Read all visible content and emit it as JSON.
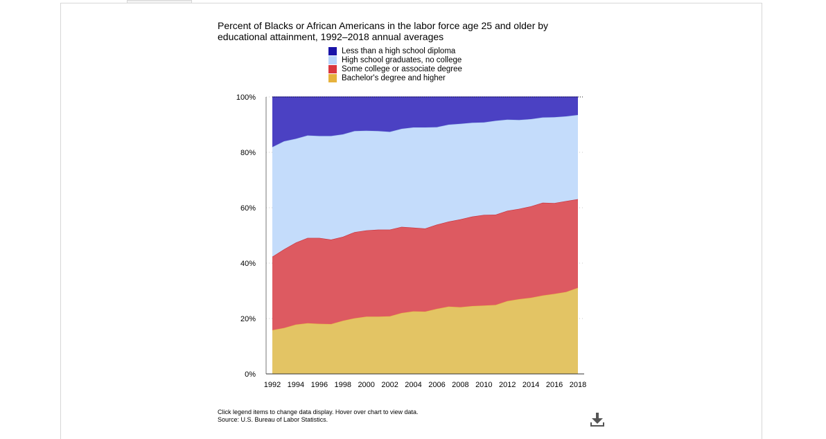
{
  "title": "Percent of Blacks or African Americans in the labor force age 25 and older by educational attainment, 1992–2018 annual averages",
  "footnote": {
    "instructions": "Click legend items to change data display. Hover over chart to view data.",
    "source": "Source: U.S. Bureau of Labor Statistics."
  },
  "download_icon": "download-icon",
  "chart_data": {
    "type": "area",
    "stacked": true,
    "x": [
      1992,
      1993,
      1994,
      1995,
      1996,
      1997,
      1998,
      1999,
      2000,
      2001,
      2002,
      2003,
      2004,
      2005,
      2006,
      2007,
      2008,
      2009,
      2010,
      2011,
      2012,
      2013,
      2014,
      2015,
      2016,
      2017,
      2018
    ],
    "x_tick_labels": [
      "1992",
      "1994",
      "1996",
      "1998",
      "2000",
      "2002",
      "2004",
      "2006",
      "2008",
      "2010",
      "2012",
      "2014",
      "2016",
      "2018"
    ],
    "y_tick_labels": [
      "0%",
      "20%",
      "40%",
      "60%",
      "80%",
      "100%"
    ],
    "ylim": [
      0,
      100
    ],
    "legend_position": "top",
    "series": [
      {
        "name": "Bachelor's degree and higher",
        "color": "#e3c464",
        "line": "#e8b84a",
        "values": [
          15.8,
          16.6,
          17.8,
          18.3,
          18.1,
          18.0,
          19.2,
          20.1,
          20.7,
          20.7,
          20.8,
          22.0,
          22.6,
          22.5,
          23.5,
          24.3,
          24.1,
          24.5,
          24.7,
          24.9,
          26.3,
          27.0,
          27.5,
          28.3,
          28.9,
          29.6,
          31.1
        ]
      },
      {
        "name": "Some college or associate degree",
        "color": "#dd5a61",
        "line": "#c8303a",
        "values": [
          26.5,
          28.4,
          29.6,
          30.8,
          31.0,
          30.5,
          30.3,
          31.1,
          31.1,
          31.4,
          31.3,
          31.1,
          30.2,
          30.0,
          30.4,
          30.7,
          31.7,
          32.3,
          32.7,
          32.6,
          32.6,
          32.6,
          33.0,
          33.5,
          32.8,
          32.8,
          32.0
        ]
      },
      {
        "name": "High school graduates, no college",
        "color": "#c4dcfb",
        "line": "#a6c7ef",
        "values": [
          39.6,
          39.0,
          37.5,
          37.0,
          36.8,
          37.4,
          37.0,
          36.5,
          36.0,
          35.6,
          35.3,
          35.4,
          36.2,
          36.5,
          35.2,
          35.0,
          34.5,
          33.9,
          33.4,
          33.9,
          32.9,
          32.1,
          31.5,
          30.8,
          31.0,
          30.6,
          30.4
        ]
      },
      {
        "name": "Less than a high school diploma",
        "color": "#4b41c3",
        "line": "#2a22a8",
        "values": [
          18.1,
          16.0,
          15.1,
          13.9,
          14.1,
          14.1,
          13.5,
          12.3,
          12.2,
          12.3,
          12.6,
          11.5,
          11.0,
          11.0,
          10.9,
          10.0,
          9.7,
          9.3,
          9.2,
          8.6,
          8.2,
          8.3,
          8.0,
          7.4,
          7.3,
          7.0,
          6.5
        ]
      }
    ],
    "legend_order": [
      "Less than a high school diploma",
      "High school graduates, no college",
      "Some college or associate degree",
      "Bachelor's degree and higher"
    ],
    "legend_colors": [
      "#1a14a8",
      "#b7d5fb",
      "#d9373f",
      "#e6b23c"
    ]
  }
}
